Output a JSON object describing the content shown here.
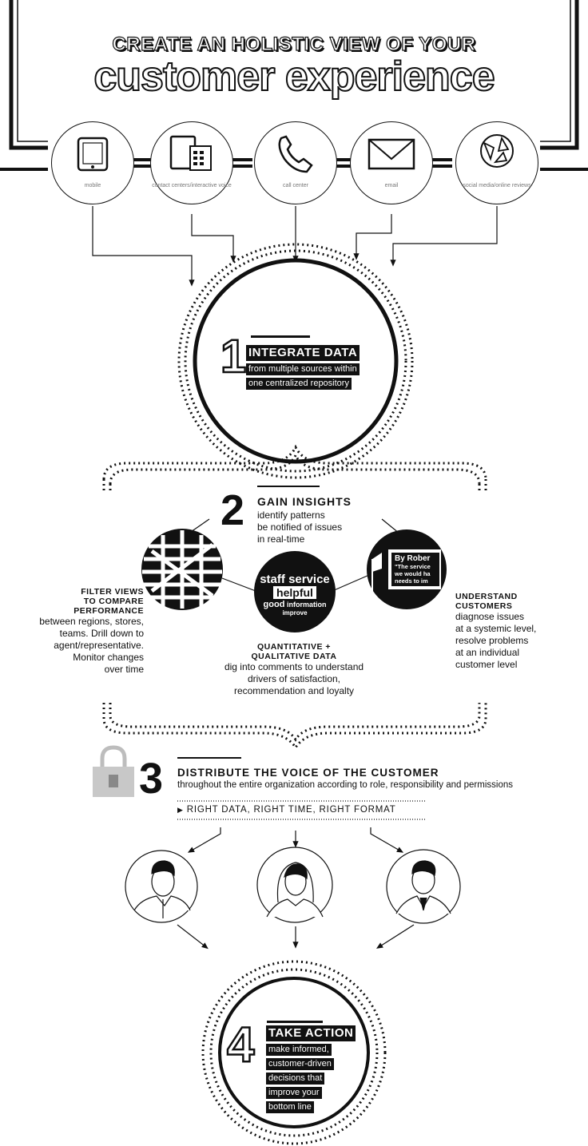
{
  "header": {
    "line1": "CREATE AN HOLISTIC VIEW OF YOUR",
    "line2": "customer experience"
  },
  "sources": [
    {
      "icon": "tablet-icon",
      "label": "mobile"
    },
    {
      "icon": "computer-phone-icon",
      "label": "contact centers/interactive voice"
    },
    {
      "icon": "phone-icon",
      "label": "call center"
    },
    {
      "icon": "envelope-icon",
      "label": "email"
    },
    {
      "icon": "social-media-icon",
      "label": "social media/online reviews"
    }
  ],
  "step1": {
    "number": "1",
    "title": "INTEGRATE DATA",
    "lines": [
      "from multiple sources within",
      "one centralized repository"
    ]
  },
  "step2": {
    "number": "2",
    "title": "GAIN INSIGHTS",
    "lines": [
      "identify patterns",
      "be notified of issues",
      "in real-time"
    ],
    "left": {
      "title": [
        "FILTER VIEWS",
        "TO COMPARE",
        "PERFORMANCE"
      ],
      "lines": [
        "between regions, stores,",
        "teams. Drill down to",
        "agent/representative.",
        "Monitor changes",
        "over time"
      ]
    },
    "center": {
      "words": [
        "staff",
        "service",
        "helpful",
        "good",
        "information",
        "improve"
      ],
      "title": [
        "QUANTITATIVE +",
        "QUALITATIVE DATA"
      ],
      "lines": [
        "dig into comments to understand",
        "drivers of satisfaction,",
        "recommendation and loyalty"
      ]
    },
    "right": {
      "bubble": [
        "By Rober",
        "\"The service",
        "we would ha",
        "needs to im"
      ],
      "title": [
        "UNDERSTAND",
        "CUSTOMERS"
      ],
      "lines": [
        "diagnose issues",
        "at a systemic level,",
        "resolve problems",
        "at an individual",
        "customer level"
      ]
    }
  },
  "step3": {
    "number": "3",
    "title": "DISTRIBUTE THE VOICE OF THE CUSTOMER",
    "subtitle": "throughout the entire organization according to role, responsibility and permissions",
    "tagline": "RIGHT DATA, RIGHT TIME, RIGHT FORMAT"
  },
  "step4": {
    "number": "4",
    "title": "TAKE ACTION",
    "lines": [
      "make informed,",
      "customer-driven",
      "decisions that",
      "improve your",
      "bottom line"
    ]
  },
  "colors": {
    "ink": "#111111",
    "gray": "#888888",
    "lock": "#c8c8c8"
  }
}
